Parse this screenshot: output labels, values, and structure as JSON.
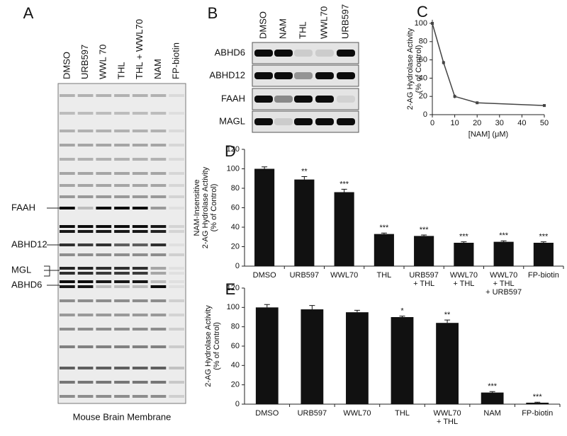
{
  "panel_a": {
    "letter": "A",
    "lanes": [
      "DMSO",
      "URB597",
      "WWL 70",
      "THL",
      "THL + WWL70",
      "NAM",
      "FP-biotin"
    ],
    "bands": [
      "FAAH",
      "ABHD12",
      "MGL",
      "ABHD6"
    ],
    "caption": "Mouse Brain Membrane"
  },
  "panel_b": {
    "letter": "B",
    "lanes": [
      "DMSO",
      "NAM",
      "THL",
      "WWL70",
      "URB597"
    ],
    "rows": [
      "ABHD6",
      "ABHD12",
      "FAAH",
      "MAGL"
    ]
  },
  "chart_data": [
    {
      "type": "line",
      "letter": "C",
      "ylabel": "2-AG Hydrolase Activity\n(% of Control)",
      "xlabel": "[NAM] (μM)",
      "x": [
        0,
        5,
        10,
        20,
        50
      ],
      "values": [
        100,
        57,
        20,
        13,
        10
      ],
      "errors": [
        4,
        2,
        2,
        1,
        1
      ],
      "color": "#444",
      "xlim": [
        0,
        50
      ],
      "ylim": [
        0,
        100
      ],
      "xticks": [
        0,
        10,
        20,
        30,
        40,
        50
      ],
      "yticks": [
        0,
        20,
        40,
        60,
        80,
        100
      ]
    },
    {
      "type": "bar",
      "letter": "D",
      "ylabel": "NAM-Insensitive\n2-AG Hydrolase Activity\n(% of Control)",
      "categories": [
        "DMSO",
        "URB597",
        "WWL70",
        "THL",
        "URB597\n+ THL",
        "WWL70\n+ THL",
        "WWL70\n+ THL\n+ URB597",
        "FP-biotin"
      ],
      "values": [
        100,
        89,
        76,
        33,
        31,
        24,
        25,
        24
      ],
      "errors": [
        2,
        3,
        3,
        1,
        1,
        1,
        1,
        1
      ],
      "annotations": [
        null,
        "**",
        "***",
        "***",
        "***",
        "***",
        "***",
        "***"
      ],
      "color": "#111",
      "ylim": [
        0,
        120
      ],
      "yticks": [
        0,
        20,
        40,
        60,
        80,
        100,
        120
      ]
    },
    {
      "type": "bar",
      "letter": "E",
      "ylabel": "2-AG Hydrolase Activity\n(% of Control)",
      "categories": [
        "DMSO",
        "URB597",
        "WWL70",
        "THL",
        "WWL70\n+ THL",
        "NAM",
        "FP-biotin"
      ],
      "values": [
        100,
        98,
        95,
        90,
        84,
        12,
        1.5
      ],
      "errors": [
        3,
        4,
        2,
        1,
        3,
        1,
        0.5
      ],
      "annotations": [
        null,
        null,
        null,
        "*",
        "**",
        "***",
        "***"
      ],
      "color": "#111",
      "ylim": [
        0,
        120
      ],
      "yticks": [
        0,
        20,
        40,
        60,
        80,
        100,
        120
      ]
    }
  ]
}
